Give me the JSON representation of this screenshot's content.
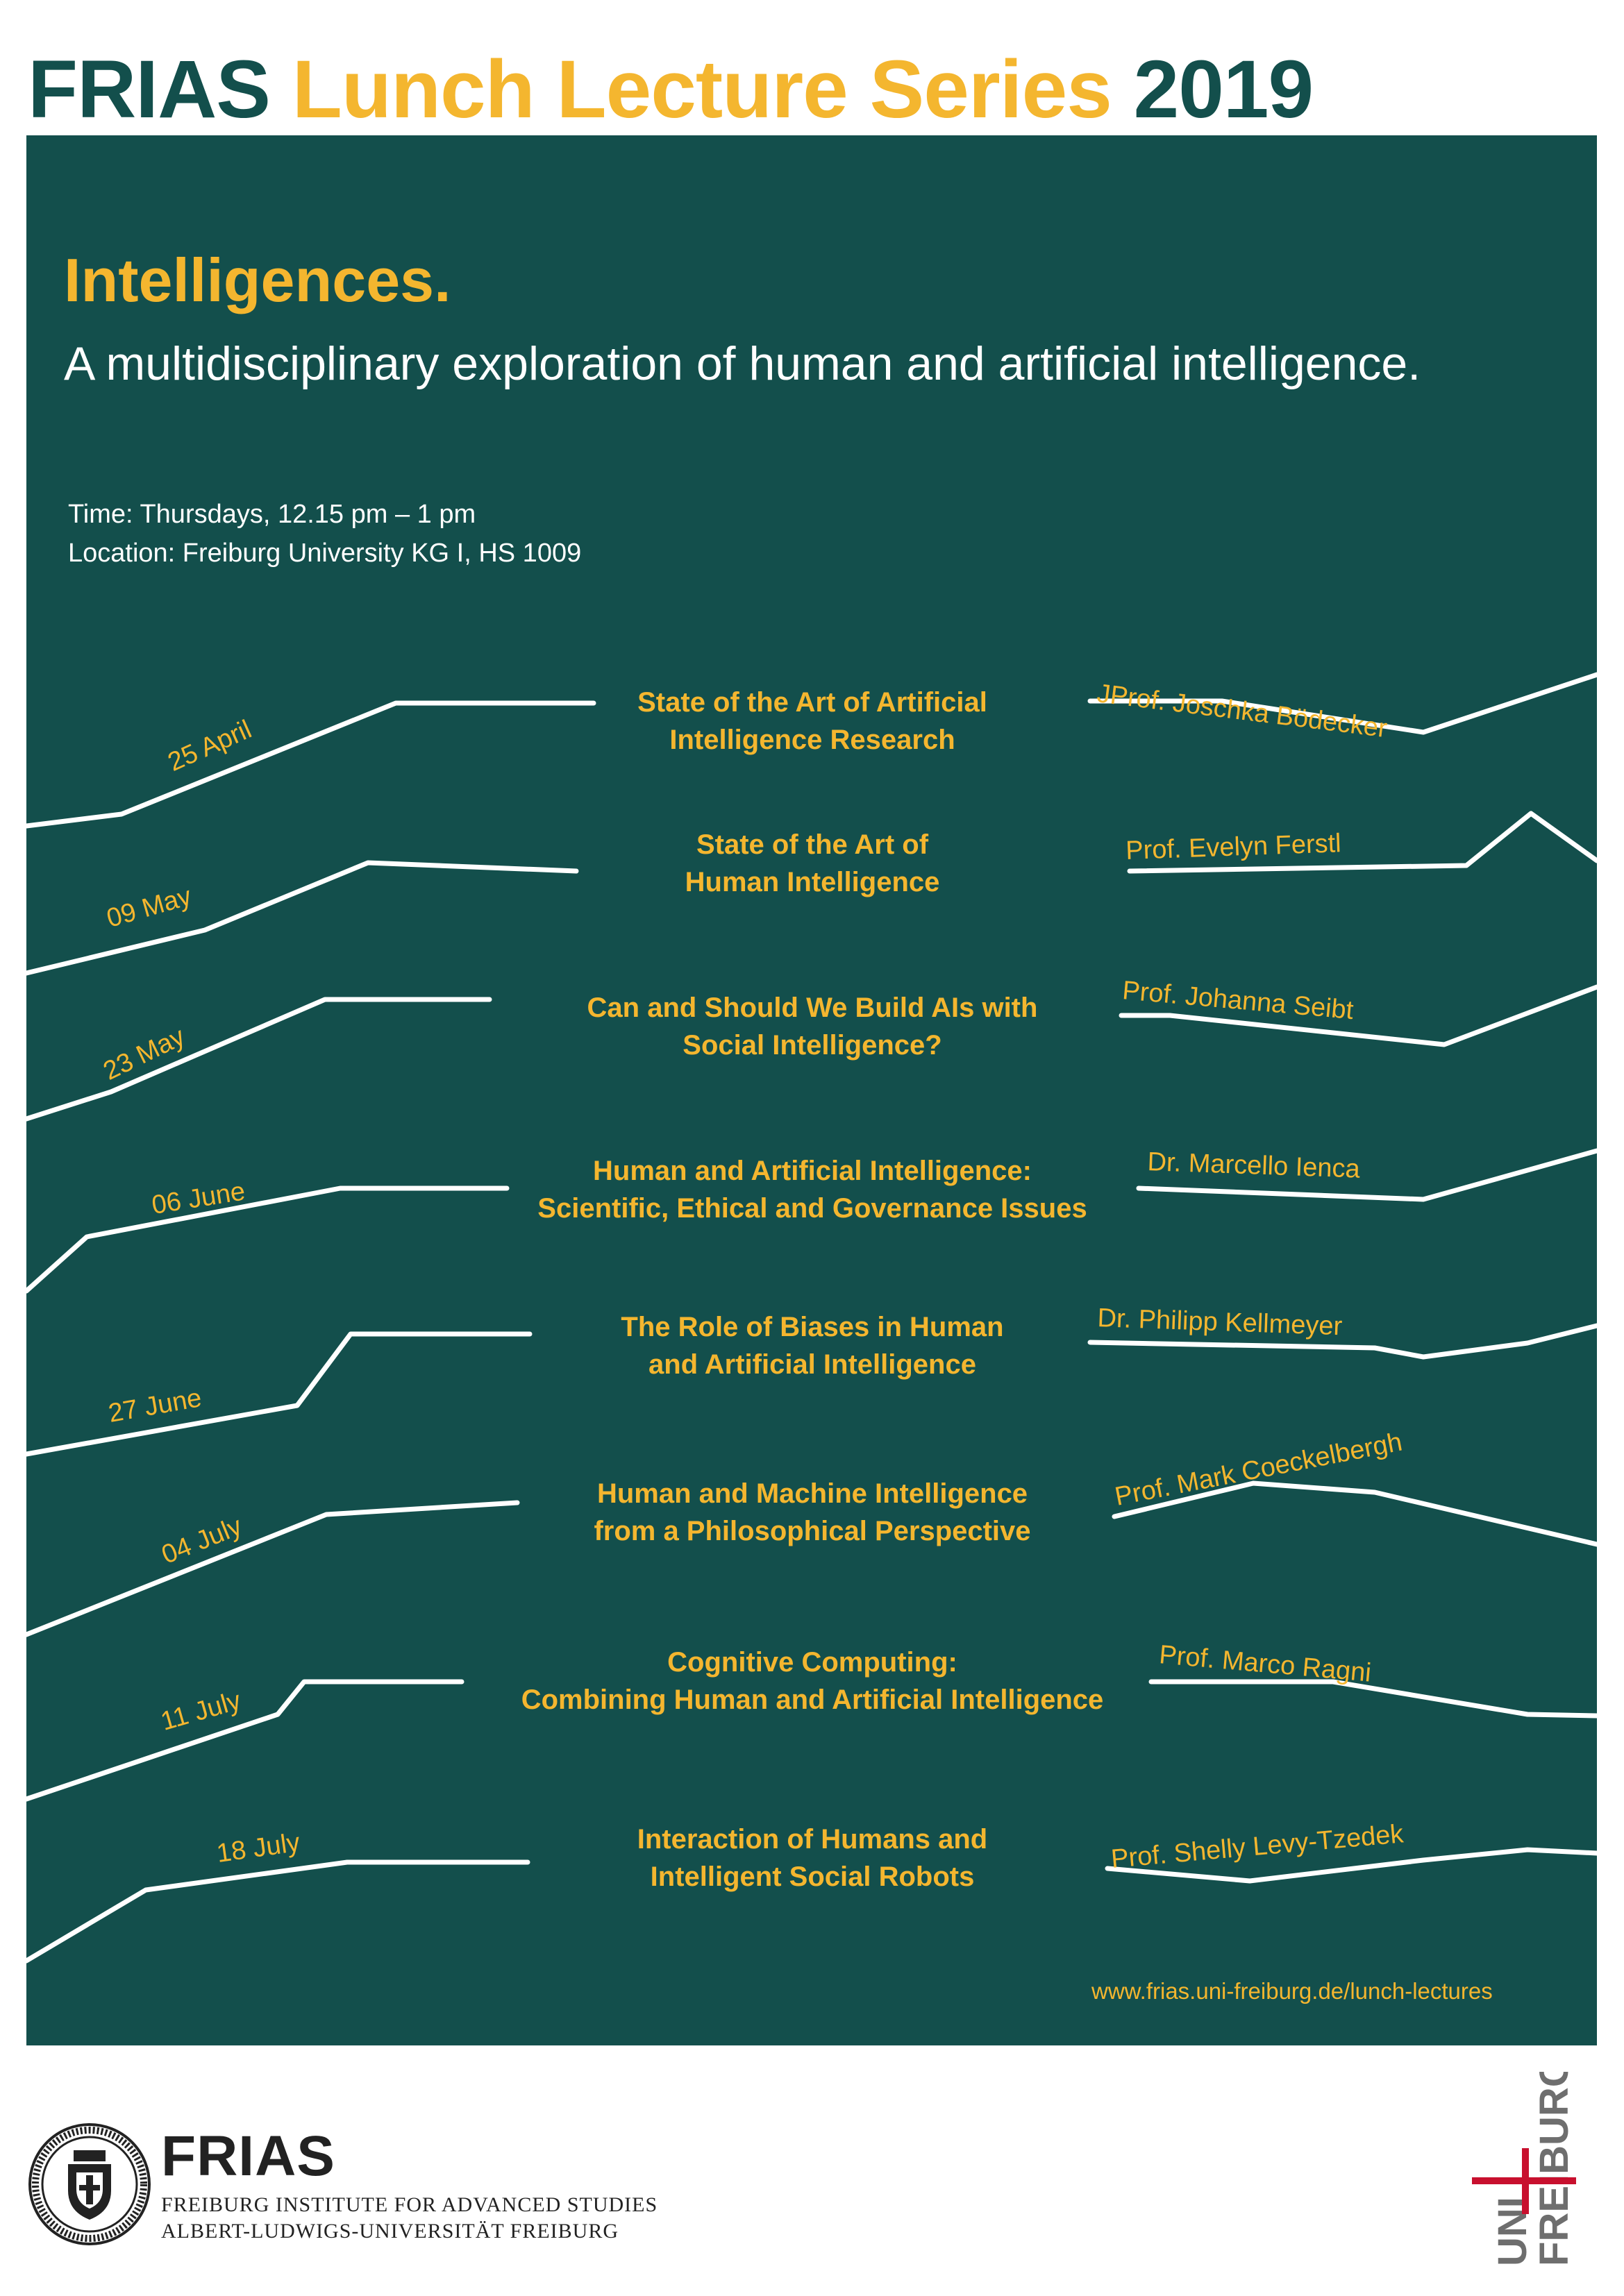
{
  "header": {
    "frias": "FRIAS",
    "series": "Lunch Lecture Series",
    "year": "2019"
  },
  "main": {
    "title": "Intelligences.",
    "subtitle": "A multidisciplinary exploration of human and artificial intelligence.",
    "time": "Time: Thursdays, 12.15 pm – 1 pm",
    "location": "Location: Freiburg University KG I, HS 1009"
  },
  "lectures": [
    {
      "date": "25 April",
      "title": "State of the Art of Artificial\nIntelligence Research",
      "speaker": "JProf. Joschka Bödecker"
    },
    {
      "date": "09 May",
      "title": "State of the Art of\nHuman Intelligence",
      "speaker": "Prof. Evelyn Ferstl"
    },
    {
      "date": "23 May",
      "title": "Can and Should We Build AIs with\nSocial Intelligence?",
      "speaker": "Prof. Johanna Seibt"
    },
    {
      "date": "06 June",
      "title": "Human and Artificial Intelligence:\nScientific, Ethical and Governance Issues",
      "speaker": "Dr. Marcello Ienca"
    },
    {
      "date": "27 June",
      "title": "The Role of Biases in Human\nand Artificial Intelligence",
      "speaker": "Dr. Philipp Kellmeyer"
    },
    {
      "date": "04 July",
      "title": "Human and Machine Intelligence\nfrom a Philosophical Perspective",
      "speaker": "Prof. Mark Coeckelbergh"
    },
    {
      "date": "11 July",
      "title": "Cognitive Computing:\nCombining Human and Artificial Intelligence",
      "speaker": "Prof. Marco Ragni"
    },
    {
      "date": "18 July",
      "title": "Interaction of Humans and\nIntelligent Social Robots",
      "speaker": "Prof. Shelly Levy-Tzedek"
    }
  ],
  "website": "www.frias.uni-freiburg.de/lunch-lectures",
  "footer": {
    "frias_name": "FRIAS",
    "institute_line1": "FREIBURG INSTITUTE FOR ADVANCED STUDIES",
    "institute_line2": "ALBERT-LUDWIGS-UNIVERSITÄT FREIBURG",
    "uni_logo_uni": "UNI",
    "uni_logo_freiburg": "FREIBURG"
  },
  "colors": {
    "panel": "#134f4c",
    "accent": "#f4b62f",
    "text_light": "#ffffff",
    "logo_red": "#c8102e"
  }
}
